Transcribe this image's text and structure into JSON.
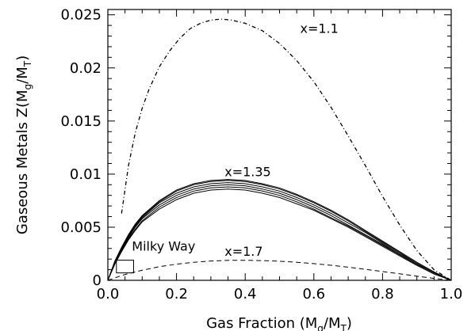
{
  "chart_data": {
    "type": "line",
    "xlabel_main": "Gas Fraction (M",
    "xlabel_sub1": "g",
    "xlabel_mid": "/M",
    "xlabel_sub2": "T",
    "xlabel_end": ")",
    "ylabel_main": "Gaseous Metals Z(M",
    "ylabel_sub1": "g",
    "ylabel_mid": "/M",
    "ylabel_sub2": "T",
    "ylabel_end": ")",
    "xlim": [
      0.0,
      1.0
    ],
    "ylim": [
      0,
      0.0255
    ],
    "x_ticks": [
      {
        "value": 0.0,
        "label": "0.0"
      },
      {
        "value": 0.2,
        "label": "0.2"
      },
      {
        "value": 0.4,
        "label": "0.4"
      },
      {
        "value": 0.6,
        "label": "0.6"
      },
      {
        "value": 0.8,
        "label": "0.8"
      },
      {
        "value": 1.0,
        "label": "1.0"
      }
    ],
    "y_ticks": [
      {
        "value": 0,
        "label": "0"
      },
      {
        "value": 0.005,
        "label": "0.005"
      },
      {
        "value": 0.01,
        "label": "0.01"
      },
      {
        "value": 0.015,
        "label": "0.015"
      },
      {
        "value": 0.02,
        "label": "0.02"
      },
      {
        "value": 0.025,
        "label": "0.025"
      }
    ],
    "grid": false,
    "annotations": [
      {
        "text": "x=1.1",
        "x": 0.56,
        "y": 0.0233
      },
      {
        "text": "x=1.35",
        "x": 0.34,
        "y": 0.0098
      },
      {
        "text": "x=1.7",
        "x": 0.34,
        "y": 0.0023
      },
      {
        "text": "Milky Way",
        "x": 0.07,
        "y": 0.0028
      }
    ],
    "milky_way_box": {
      "x0": 0.025,
      "x1": 0.075,
      "y0": 0.0007,
      "y1": 0.0019
    },
    "series": [
      {
        "label_ref": "x=1.1",
        "style": "dash-dot",
        "x": [
          0.04,
          0.06,
          0.08,
          0.1,
          0.12,
          0.15,
          0.18,
          0.21,
          0.24,
          0.27,
          0.3,
          0.33,
          0.36,
          0.4,
          0.45,
          0.5,
          0.55,
          0.6,
          0.65,
          0.7,
          0.75,
          0.8,
          0.85,
          0.9,
          0.95,
          1.0
        ],
        "y": [
          0.0063,
          0.0108,
          0.0139,
          0.0162,
          0.018,
          0.0201,
          0.0216,
          0.0228,
          0.0237,
          0.0242,
          0.0245,
          0.0246,
          0.0245,
          0.0242,
          0.0235,
          0.0223,
          0.0207,
          0.0187,
          0.0163,
          0.0136,
          0.0108,
          0.0079,
          0.0052,
          0.0028,
          0.001,
          0.0
        ]
      },
      {
        "label_ref": "x=1.35",
        "style": "solid",
        "x": [
          0.0,
          0.02,
          0.04,
          0.06,
          0.08,
          0.1,
          0.15,
          0.2,
          0.25,
          0.3,
          0.35,
          0.4,
          0.45,
          0.5,
          0.55,
          0.6,
          0.65,
          0.7,
          0.75,
          0.8,
          0.85,
          0.9,
          0.95,
          1.0
        ],
        "y": [
          0.0,
          0.0018,
          0.0031,
          0.0043,
          0.0053,
          0.0061,
          0.0075,
          0.0085,
          0.0091,
          0.0094,
          0.0095,
          0.0094,
          0.0091,
          0.0087,
          0.0081,
          0.0074,
          0.0066,
          0.0057,
          0.0047,
          0.0037,
          0.0027,
          0.0017,
          0.0008,
          0.0
        ]
      },
      {
        "label_ref": "x=1.35",
        "style": "solid",
        "x": [
          0.0,
          0.02,
          0.04,
          0.06,
          0.08,
          0.1,
          0.15,
          0.2,
          0.25,
          0.3,
          0.35,
          0.4,
          0.45,
          0.5,
          0.55,
          0.6,
          0.65,
          0.7,
          0.75,
          0.8,
          0.85,
          0.9,
          0.95,
          1.0
        ],
        "y": [
          0.0,
          0.0017,
          0.003,
          0.0042,
          0.0052,
          0.006,
          0.0074,
          0.0084,
          0.009,
          0.0093,
          0.0094,
          0.0093,
          0.009,
          0.0086,
          0.008,
          0.0073,
          0.0065,
          0.0056,
          0.0046,
          0.0036,
          0.0026,
          0.0016,
          0.0007,
          0.0
        ]
      },
      {
        "label_ref": "x=1.35",
        "style": "solid",
        "x": [
          0.0,
          0.02,
          0.04,
          0.06,
          0.08,
          0.1,
          0.15,
          0.2,
          0.25,
          0.3,
          0.35,
          0.4,
          0.45,
          0.5,
          0.55,
          0.6,
          0.65,
          0.7,
          0.75,
          0.8,
          0.85,
          0.9,
          0.95,
          1.0
        ],
        "y": [
          0.0,
          0.0017,
          0.003,
          0.0041,
          0.0051,
          0.0059,
          0.0073,
          0.0082,
          0.0088,
          0.0091,
          0.0092,
          0.0091,
          0.0088,
          0.0084,
          0.0078,
          0.0071,
          0.0063,
          0.0054,
          0.0045,
          0.0035,
          0.0025,
          0.0016,
          0.0007,
          0.0
        ]
      },
      {
        "label_ref": "x=1.35",
        "style": "solid",
        "x": [
          0.0,
          0.02,
          0.04,
          0.06,
          0.08,
          0.1,
          0.15,
          0.2,
          0.25,
          0.3,
          0.35,
          0.4,
          0.45,
          0.5,
          0.55,
          0.6,
          0.65,
          0.7,
          0.75,
          0.8,
          0.85,
          0.9,
          0.95,
          1.0
        ],
        "y": [
          0.0,
          0.0016,
          0.0029,
          0.004,
          0.005,
          0.0058,
          0.0071,
          0.008,
          0.0086,
          0.0089,
          0.009,
          0.0089,
          0.0086,
          0.0082,
          0.0076,
          0.0069,
          0.0061,
          0.0052,
          0.0043,
          0.0034,
          0.0024,
          0.0015,
          0.0007,
          0.0
        ]
      },
      {
        "label_ref": "x=1.35",
        "style": "solid",
        "x": [
          0.0,
          0.02,
          0.04,
          0.06,
          0.08,
          0.1,
          0.15,
          0.2,
          0.25,
          0.3,
          0.35,
          0.4,
          0.45,
          0.5,
          0.55,
          0.6,
          0.65,
          0.7,
          0.75,
          0.8,
          0.85,
          0.9,
          0.95,
          1.0
        ],
        "y": [
          0.0,
          0.0016,
          0.0028,
          0.0039,
          0.0048,
          0.0056,
          0.0069,
          0.0078,
          0.0084,
          0.0087,
          0.0088,
          0.0087,
          0.0084,
          0.008,
          0.0074,
          0.0067,
          0.0059,
          0.0051,
          0.0042,
          0.0033,
          0.0024,
          0.0015,
          0.0007,
          0.0
        ]
      },
      {
        "label_ref": "x=1.35",
        "style": "solid",
        "x": [
          0.0,
          0.02,
          0.04,
          0.06,
          0.08,
          0.1,
          0.15,
          0.2,
          0.25,
          0.3,
          0.35,
          0.4,
          0.45,
          0.5,
          0.55,
          0.6,
          0.65,
          0.7,
          0.75,
          0.8,
          0.85,
          0.9,
          0.95,
          1.0
        ],
        "y": [
          0.0,
          0.0015,
          0.0027,
          0.0038,
          0.0047,
          0.0055,
          0.0067,
          0.0076,
          0.0082,
          0.0085,
          0.0086,
          0.0085,
          0.0082,
          0.0078,
          0.0072,
          0.0066,
          0.0058,
          0.005,
          0.0041,
          0.0032,
          0.0023,
          0.0014,
          0.0006,
          0.0
        ]
      },
      {
        "label_ref": "x=1.7",
        "style": "dashed",
        "x": [
          0.0,
          0.05,
          0.1,
          0.15,
          0.2,
          0.25,
          0.3,
          0.35,
          0.4,
          0.45,
          0.5,
          0.55,
          0.6,
          0.65,
          0.7,
          0.75,
          0.8,
          0.85,
          0.9,
          0.95,
          1.0
        ],
        "y": [
          0.0,
          0.00055,
          0.00095,
          0.00128,
          0.00152,
          0.0017,
          0.00182,
          0.00188,
          0.00189,
          0.00186,
          0.0018,
          0.0017,
          0.00157,
          0.00142,
          0.00124,
          0.00104,
          0.00083,
          0.00061,
          0.00039,
          0.00018,
          0.0
        ]
      }
    ]
  }
}
